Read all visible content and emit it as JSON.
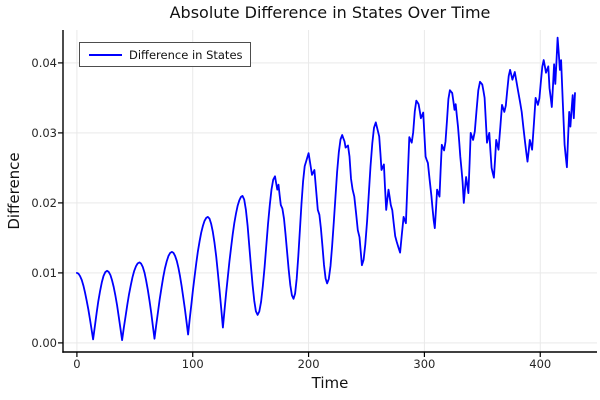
{
  "chart_data": {
    "type": "line",
    "title": "Absolute Difference in States Over Time",
    "xlabel": "Time",
    "ylabel": "Difference",
    "legend": {
      "label": "Difference in States",
      "position": "top-left"
    },
    "xlim": [
      -12,
      449
    ],
    "ylim": [
      -0.0013,
      0.0447
    ],
    "xticks": [
      0,
      100,
      200,
      300,
      400
    ],
    "xtick_labels": [
      "0",
      "100",
      "200",
      "300",
      "400"
    ],
    "yticks": [
      0,
      0.01,
      0.02,
      0.03,
      0.04
    ],
    "ytick_labels": [
      "0.00",
      "0.01",
      "0.02",
      "0.03",
      "0.04"
    ],
    "grid": true,
    "background": "#ffffff",
    "grid_color": "#e9e9e9",
    "spine_color": "#000000",
    "tick_label_color": "#262626",
    "series": [
      {
        "name": "Difference in States",
        "color": "#0000fe",
        "points": [
          [
            0,
            0.01
          ],
          [
            14,
            0.0005
          ],
          [
            26,
            0.0103
          ],
          [
            39,
            0.0004
          ],
          [
            54,
            0.0115
          ],
          [
            67,
            0.0006
          ],
          [
            82,
            0.013
          ],
          [
            96,
            0.0012
          ],
          [
            113,
            0.018
          ],
          [
            126,
            0.0022
          ],
          [
            143,
            0.021
          ],
          [
            156,
            0.004
          ],
          [
            171,
            0.0238
          ],
          [
            173,
            0.0219
          ],
          [
            174,
            0.0226
          ],
          [
            176,
            0.0197
          ],
          [
            187,
            0.0063
          ],
          [
            198,
            0.026
          ],
          [
            200,
            0.0271
          ],
          [
            203,
            0.024
          ],
          [
            205,
            0.0247
          ],
          [
            208,
            0.019
          ],
          [
            216,
            0.0085
          ],
          [
            229,
            0.0297
          ],
          [
            231,
            0.0288
          ],
          [
            232,
            0.0279
          ],
          [
            234,
            0.0282
          ],
          [
            238,
            0.0219
          ],
          [
            244,
            0.0151
          ],
          [
            246,
            0.0111
          ],
          [
            258,
            0.0315
          ],
          [
            261,
            0.0295
          ],
          [
            263,
            0.0247
          ],
          [
            265,
            0.0255
          ],
          [
            267,
            0.019
          ],
          [
            269,
            0.0219
          ],
          [
            271,
            0.0197
          ],
          [
            276,
            0.0145
          ],
          [
            279,
            0.0129
          ],
          [
            282,
            0.018
          ],
          [
            284,
            0.0171
          ],
          [
            287,
            0.0294
          ],
          [
            289,
            0.0286
          ],
          [
            293,
            0.0346
          ],
          [
            295,
            0.0341
          ],
          [
            297,
            0.0321
          ],
          [
            299,
            0.0329
          ],
          [
            301,
            0.0266
          ],
          [
            303,
            0.0257
          ],
          [
            306,
            0.021
          ],
          [
            308,
            0.0175
          ],
          [
            309,
            0.0164
          ],
          [
            311,
            0.0219
          ],
          [
            313,
            0.0209
          ],
          [
            315,
            0.0283
          ],
          [
            317,
            0.0275
          ],
          [
            322,
            0.0361
          ],
          [
            324,
            0.0357
          ],
          [
            326,
            0.0333
          ],
          [
            327,
            0.0341
          ],
          [
            329,
            0.0309
          ],
          [
            331,
            0.0266
          ],
          [
            333,
            0.023
          ],
          [
            334,
            0.02
          ],
          [
            336,
            0.0237
          ],
          [
            338,
            0.0214
          ],
          [
            340,
            0.03
          ],
          [
            342,
            0.029
          ],
          [
            348,
            0.0373
          ],
          [
            350,
            0.0369
          ],
          [
            352,
            0.035
          ],
          [
            354,
            0.0286
          ],
          [
            356,
            0.03
          ],
          [
            358,
            0.025
          ],
          [
            360,
            0.0236
          ],
          [
            362,
            0.029
          ],
          [
            364,
            0.0276
          ],
          [
            367,
            0.034
          ],
          [
            369,
            0.033
          ],
          [
            374,
            0.039
          ],
          [
            376,
            0.0376
          ],
          [
            378,
            0.0387
          ],
          [
            381,
            0.0359
          ],
          [
            384,
            0.033
          ],
          [
            387,
            0.0285
          ],
          [
            389,
            0.0259
          ],
          [
            391,
            0.029
          ],
          [
            393,
            0.0276
          ],
          [
            396,
            0.035
          ],
          [
            398,
            0.034
          ],
          [
            403,
            0.0404
          ],
          [
            405,
            0.0386
          ],
          [
            407,
            0.0395
          ],
          [
            408,
            0.0364
          ],
          [
            410,
            0.0337
          ],
          [
            412,
            0.0398
          ],
          [
            413,
            0.037
          ],
          [
            415,
            0.0436
          ],
          [
            417,
            0.039
          ],
          [
            418,
            0.0404
          ],
          [
            421,
            0.0283
          ],
          [
            423,
            0.0251
          ],
          [
            425,
            0.033
          ],
          [
            426,
            0.0309
          ],
          [
            428,
            0.0354
          ],
          [
            429,
            0.0321
          ],
          [
            430,
            0.0357
          ]
        ]
      }
    ]
  }
}
